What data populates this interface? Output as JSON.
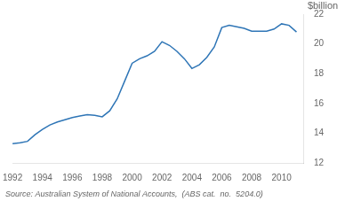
{
  "chart_data": {
    "type": "line",
    "ylabel": "$billion",
    "annotations": [
      "Source: Australian System of National Accounts,  (ABS cat.  no.  5204.0)"
    ],
    "x": [
      1992,
      1992.5,
      1993,
      1993.5,
      1994,
      1994.5,
      1995,
      1995.5,
      1996,
      1996.5,
      1997,
      1997.5,
      1998,
      1998.5,
      1999,
      1999.5,
      2000,
      2000.5,
      2001,
      2001.5,
      2002,
      2002.5,
      2003,
      2003.5,
      2004,
      2004.5,
      2005,
      2005.5,
      2006,
      2006.5,
      2007,
      2007.5,
      2008,
      2008.5,
      2009,
      2009.5,
      2010,
      2010.5,
      2011
    ],
    "values": [
      13.3,
      13.35,
      13.45,
      13.9,
      14.25,
      14.55,
      14.75,
      14.9,
      15.05,
      15.15,
      15.25,
      15.2,
      15.1,
      15.5,
      16.3,
      17.5,
      18.7,
      19.0,
      19.2,
      19.5,
      20.15,
      19.9,
      19.5,
      19.0,
      18.35,
      18.6,
      19.1,
      19.8,
      21.1,
      21.25,
      21.15,
      21.05,
      20.85,
      20.85,
      20.85,
      21.0,
      21.35,
      21.25,
      20.8
    ],
    "color": "#2e75b6",
    "xlim": [
      1992,
      2011.5
    ],
    "xticks": [
      1992,
      1994,
      1996,
      1998,
      2000,
      2002,
      2004,
      2006,
      2008,
      2010
    ],
    "ylim": [
      12,
      22
    ],
    "yticks": [
      12,
      14,
      16,
      18,
      20,
      22
    ],
    "grid": false
  }
}
